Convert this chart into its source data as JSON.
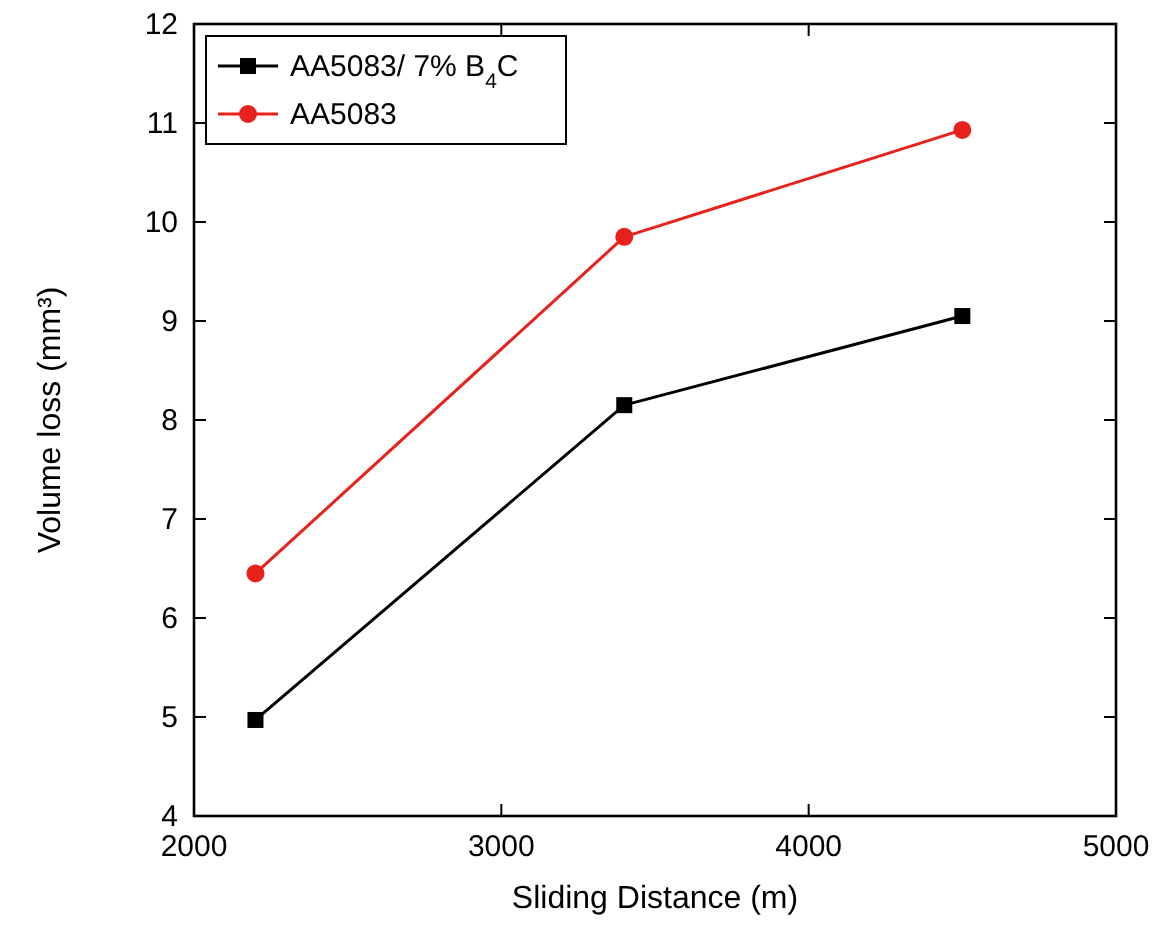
{
  "chart_data": {
    "type": "line",
    "xlabel": "Sliding Distance (m)",
    "ylabel": "Volume loss (mm³)",
    "x": [
      2200,
      3400,
      4500
    ],
    "series": [
      {
        "name": "AA5083/ 7% B$_{4}$C",
        "color": "#000000",
        "marker": "square",
        "values": [
          4.97,
          8.15,
          9.05
        ]
      },
      {
        "name": "AA5083",
        "color": "#e8211d",
        "marker": "circle",
        "values": [
          6.45,
          9.85,
          10.93
        ]
      }
    ],
    "xlim": [
      2000,
      5000
    ],
    "xticks": [
      2000,
      3000,
      4000,
      5000
    ],
    "ylim": [
      4,
      12
    ],
    "yticks": [
      4,
      5,
      6,
      7,
      8,
      9,
      10,
      11,
      12
    ],
    "legend": "top left",
    "grid": false,
    "line_style": "solid"
  }
}
